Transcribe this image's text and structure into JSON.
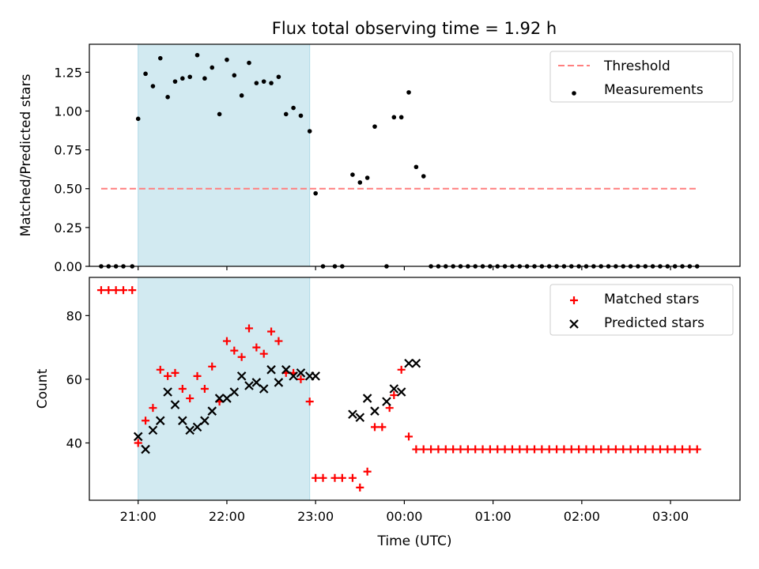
{
  "title": "Flux total observing time = 1.92 h",
  "chart_data": [
    {
      "type": "scatter",
      "ylabel": "Matched/Predicted stars",
      "xlabel": "",
      "xlim": [
        "20:27",
        "03:47"
      ],
      "ylim": [
        0,
        1.43
      ],
      "yticks": [
        0.0,
        0.25,
        0.5,
        0.75,
        1.0,
        1.25
      ],
      "ytick_labels": [
        "0.00",
        "0.25",
        "0.50",
        "0.75",
        "1.00",
        "1.25"
      ],
      "xticks": [
        "21:00",
        "22:00",
        "23:00",
        "00:00",
        "01:00",
        "02:00",
        "03:00"
      ],
      "xtick_labels": [],
      "grid": false,
      "legend": {
        "position": "top-right",
        "entries": [
          {
            "label": "Threshold",
            "marker": "dashed-line",
            "color": "#ff7f7f"
          },
          {
            "label": "Measurements",
            "marker": "dot",
            "color": "#000000"
          }
        ]
      },
      "observing_window": {
        "start": "21:00",
        "end": "22:56",
        "color": "#add8e6"
      },
      "threshold": {
        "name": "Threshold",
        "value": 0.5,
        "x_start": "20:35",
        "x_end": "03:18",
        "color": "#ff7f7f"
      },
      "series": [
        {
          "name": "Measurements",
          "color": "#000000",
          "x": [
            "20:35",
            "20:40",
            "20:45",
            "20:50",
            "20:56",
            "21:00",
            "21:05",
            "21:10",
            "21:15",
            "21:20",
            "21:25",
            "21:30",
            "21:35",
            "21:40",
            "21:45",
            "21:50",
            "21:55",
            "22:00",
            "22:05",
            "22:10",
            "22:15",
            "22:20",
            "22:25",
            "22:30",
            "22:35",
            "22:40",
            "22:45",
            "22:50",
            "22:56",
            "23:00",
            "23:05",
            "23:13",
            "23:18",
            "23:25",
            "23:30",
            "23:35",
            "23:40",
            "23:48",
            "23:53",
            "23:58",
            "24:03",
            "24:08",
            "24:13",
            "24:18",
            "24:23",
            "24:28",
            "24:33",
            "24:38",
            "24:43",
            "24:48",
            "24:53",
            "24:58",
            "25:03",
            "25:08",
            "25:13",
            "25:18",
            "25:23",
            "25:28",
            "25:33",
            "25:38",
            "25:43",
            "25:48",
            "25:53",
            "25:58",
            "26:03",
            "26:08",
            "26:13",
            "26:18",
            "26:23",
            "26:28",
            "26:33",
            "26:38",
            "26:43",
            "26:48",
            "26:53",
            "26:58",
            "27:03",
            "27:08",
            "27:13",
            "27:18"
          ],
          "y": [
            0,
            0,
            0,
            0,
            0,
            0.95,
            1.24,
            1.16,
            1.34,
            1.09,
            1.19,
            1.21,
            1.22,
            1.36,
            1.21,
            1.28,
            0.98,
            1.33,
            1.23,
            1.1,
            1.31,
            1.18,
            1.19,
            1.18,
            1.22,
            0.98,
            1.02,
            0.97,
            0.87,
            0.47,
            0,
            0,
            0,
            0.59,
            0.54,
            0.57,
            0.9,
            0,
            0.96,
            0.96,
            1.12,
            0.64,
            0.58,
            0,
            0,
            0,
            0,
            0,
            0,
            0,
            0,
            0,
            0,
            0,
            0,
            0,
            0,
            0,
            0,
            0,
            0,
            0,
            0,
            0,
            0,
            0,
            0,
            0,
            0,
            0,
            0,
            0,
            0,
            0,
            0,
            0,
            0,
            0,
            0,
            0
          ]
        }
      ]
    },
    {
      "type": "scatter",
      "ylabel": "Count",
      "xlabel": "Time (UTC)",
      "xlim": [
        "20:27",
        "03:47"
      ],
      "ylim": [
        22,
        92
      ],
      "yticks": [
        40,
        60,
        80
      ],
      "ytick_labels": [
        "40",
        "60",
        "80"
      ],
      "xticks": [
        "21:00",
        "22:00",
        "23:00",
        "00:00",
        "01:00",
        "02:00",
        "03:00"
      ],
      "xtick_labels": [
        "21:00",
        "22:00",
        "23:00",
        "00:00",
        "01:00",
        "02:00",
        "03:00"
      ],
      "grid": false,
      "legend": {
        "position": "top-right",
        "entries": [
          {
            "label": "Matched stars",
            "marker": "plus",
            "color": "#ff0000"
          },
          {
            "label": "Predicted stars",
            "marker": "x",
            "color": "#000000"
          }
        ]
      },
      "observing_window": {
        "start": "21:00",
        "end": "22:56",
        "color": "#add8e6"
      },
      "series": [
        {
          "name": "Matched stars",
          "marker": "plus",
          "color": "#ff0000",
          "x": [
            "20:35",
            "20:40",
            "20:45",
            "20:50",
            "20:56",
            "21:00",
            "21:05",
            "21:10",
            "21:15",
            "21:20",
            "21:25",
            "21:30",
            "21:35",
            "21:40",
            "21:45",
            "21:50",
            "21:55",
            "22:00",
            "22:05",
            "22:10",
            "22:15",
            "22:20",
            "22:25",
            "22:30",
            "22:35",
            "22:40",
            "22:45",
            "22:50",
            "22:56",
            "23:00",
            "23:05",
            "23:13",
            "23:18",
            "23:25",
            "23:30",
            "23:35",
            "23:40",
            "23:45",
            "23:50",
            "23:53",
            "23:58",
            "24:03",
            "24:08",
            "24:13",
            "24:18",
            "24:23",
            "24:28",
            "24:33",
            "24:38",
            "24:43",
            "24:48",
            "24:53",
            "24:58",
            "25:03",
            "25:08",
            "25:13",
            "25:18",
            "25:23",
            "25:28",
            "25:33",
            "25:38",
            "25:43",
            "25:48",
            "25:53",
            "25:58",
            "26:03",
            "26:08",
            "26:13",
            "26:18",
            "26:23",
            "26:28",
            "26:33",
            "26:38",
            "26:43",
            "26:48",
            "26:53",
            "26:58",
            "27:03",
            "27:08",
            "27:13",
            "27:18"
          ],
          "y": [
            88,
            88,
            88,
            88,
            88,
            40,
            47,
            51,
            63,
            61,
            62,
            57,
            54,
            61,
            57,
            64,
            53,
            72,
            69,
            67,
            76,
            70,
            68,
            75,
            72,
            62,
            62,
            60,
            53,
            29,
            29,
            29,
            29,
            29,
            26,
            31,
            45,
            45,
            51,
            55,
            63,
            42,
            38,
            38,
            38,
            38,
            38,
            38,
            38,
            38,
            38,
            38,
            38,
            38,
            38,
            38,
            38,
            38,
            38,
            38,
            38,
            38,
            38,
            38,
            38,
            38,
            38,
            38,
            38,
            38,
            38,
            38,
            38,
            38,
            38,
            38,
            38,
            38,
            38,
            38,
            38
          ]
        },
        {
          "name": "Predicted stars",
          "marker": "x",
          "color": "#000000",
          "x": [
            "21:00",
            "21:05",
            "21:10",
            "21:15",
            "21:20",
            "21:25",
            "21:30",
            "21:35",
            "21:40",
            "21:45",
            "21:50",
            "21:55",
            "22:00",
            "22:05",
            "22:10",
            "22:15",
            "22:20",
            "22:25",
            "22:30",
            "22:35",
            "22:40",
            "22:45",
            "22:50",
            "22:56",
            "23:00",
            "23:25",
            "23:30",
            "23:35",
            "23:40",
            "23:48",
            "23:53",
            "23:58",
            "24:03",
            "24:08"
          ],
          "y": [
            42,
            38,
            44,
            47,
            56,
            52,
            47,
            44,
            45,
            47,
            50,
            54,
            54,
            56,
            61,
            58,
            59,
            57,
            63,
            59,
            63,
            61,
            62,
            61,
            61,
            49,
            48,
            54,
            50,
            53,
            57,
            56,
            65,
            65
          ]
        }
      ]
    }
  ]
}
